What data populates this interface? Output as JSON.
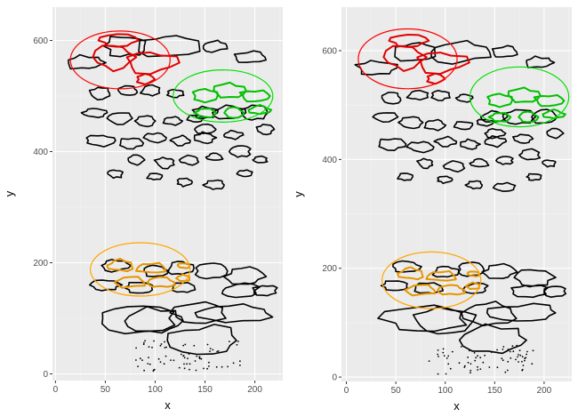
{
  "colors": {
    "panel_bg": "#ebebeb",
    "grid_major": "#ffffff",
    "grid_minor": "#f4f4f4",
    "tick": "#333333",
    "outline": "#000000",
    "red": "#ff0000",
    "green": "#00e000",
    "orange": "#ffa500",
    "sel_red": "#e00000",
    "sel_green": "#00c000",
    "sel_orange": "#e69500"
  },
  "chart_data": [
    {
      "type": "scatter",
      "title": "",
      "xlabel": "x",
      "ylabel": "y",
      "xlim": [
        -3,
        228
      ],
      "ylim": [
        -12,
        660
      ],
      "x_ticks": [
        0,
        50,
        100,
        150,
        200
      ],
      "y_ticks": [
        0,
        200,
        400,
        600
      ],
      "grid": true,
      "series": [
        {
          "values": "black contour outlines (cell boundaries)",
          "color": "#000000"
        }
      ],
      "ellipses": [
        {
          "color": "red",
          "center": [
            65,
            565
          ],
          "rx": 50,
          "ry": 52
        },
        {
          "color": "green",
          "center": [
            168,
            500
          ],
          "rx": 50,
          "ry": 47
        },
        {
          "color": "orange",
          "center": [
            85,
            188
          ],
          "rx": 50,
          "ry": 48
        }
      ]
    },
    {
      "type": "scatter",
      "title": "",
      "xlabel": "x",
      "ylabel": "y",
      "xlim": [
        -5,
        228
      ],
      "ylim": [
        -8,
        680
      ],
      "x_ticks": [
        0,
        50,
        100,
        150,
        200
      ],
      "y_ticks": [
        0,
        200,
        400,
        600
      ],
      "grid": true,
      "series": [
        {
          "values": "black contour outlines (cell boundaries)",
          "color": "#000000"
        }
      ],
      "ellipses": [
        {
          "color": "red",
          "center": [
            62,
            585
          ],
          "rx": 50,
          "ry": 55
        },
        {
          "color": "green",
          "center": [
            175,
            515
          ],
          "rx": 50,
          "ry": 55
        },
        {
          "color": "orange",
          "center": [
            86,
            178
          ],
          "rx": 50,
          "ry": 52
        }
      ]
    }
  ]
}
